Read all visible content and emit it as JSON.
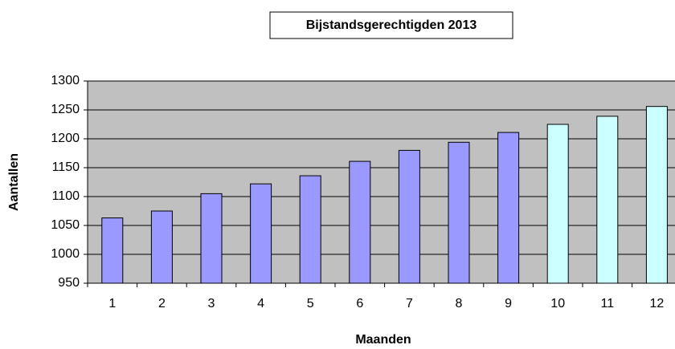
{
  "chart_data": {
    "type": "bar",
    "title": "Bijstandsgerechtigden 2013",
    "x_label": "Maanden",
    "y_label": "Aantallen",
    "categories": [
      "1",
      "2",
      "3",
      "4",
      "5",
      "6",
      "7",
      "8",
      "9",
      "10",
      "11",
      "12"
    ],
    "values": [
      1063,
      1075,
      1105,
      1122,
      1136,
      1161,
      1180,
      1194,
      1211,
      1225,
      1239,
      1256
    ],
    "colors": [
      "#9999ff",
      "#9999ff",
      "#9999ff",
      "#9999ff",
      "#9999ff",
      "#9999ff",
      "#9999ff",
      "#9999ff",
      "#9999ff",
      "#ccffff",
      "#ccffff",
      "#ccffff"
    ],
    "ylim": [
      950,
      1300
    ],
    "yticks": [
      950,
      1000,
      1050,
      1100,
      1150,
      1200,
      1250,
      1300
    ],
    "grid": true
  }
}
